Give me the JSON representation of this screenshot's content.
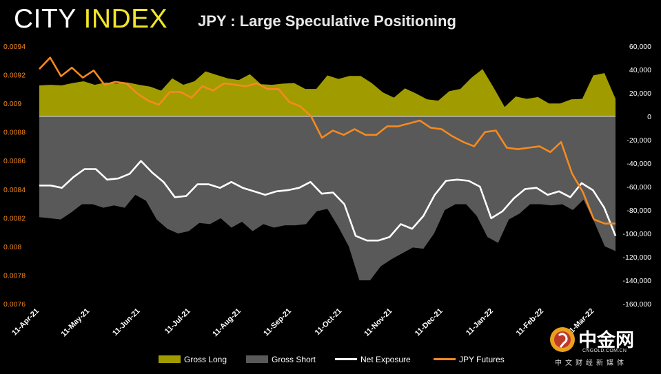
{
  "brand": {
    "word1": "CITY",
    "word2": "INDEX"
  },
  "header": {
    "title": "JPY : Large Speculative Positioning"
  },
  "watermark": {
    "name": "中金网",
    "url": "CNGOLD.COM.CN",
    "tagline": "中文财经新媒体"
  },
  "colors": {
    "gross_long": "#a09c00",
    "gross_short": "#595959",
    "net_exposure": "#ffffff",
    "jpy_futures": "#f58a1f"
  },
  "chart_data": {
    "type": "area",
    "title": "JPY : Large Speculative Positioning",
    "x_tick_labels": [
      "11-Apr-21",
      "11-May-21",
      "11-Jun-21",
      "11-Jul-21",
      "11-Aug-21",
      "11-Sep-21",
      "11-Oct-21",
      "11-Nov-21",
      "11-Dec-21",
      "11-Jan-22",
      "11-Feb-22",
      "11-Mar-22"
    ],
    "y_left": {
      "range": [
        0.0076,
        0.0094
      ],
      "ticks": [
        "0.0094",
        "0.0092",
        "0.009",
        "0.0088",
        "0.0086",
        "0.0084",
        "0.0082",
        "0.008",
        "0.0078",
        "0.0076"
      ]
    },
    "y_right": {
      "range": [
        -160000,
        60000
      ],
      "ticks": [
        "60,000",
        "40,000",
        "20,000",
        "0",
        "-20,000",
        "-40,000",
        "-60,000",
        "-80,000",
        "-100,000",
        "-120,000",
        "-140,000",
        "-160,000"
      ]
    },
    "legend": {
      "placement": "bottom",
      "entries": [
        "Gross Long",
        "Gross Short",
        "Net Exposure",
        "JPY Futures"
      ]
    },
    "series": [
      {
        "name": "Gross Long",
        "axis": "right",
        "kind": "area",
        "values": [
          26500,
          27000,
          26500,
          28500,
          30000,
          27000,
          29000,
          28000,
          29000,
          27000,
          25500,
          22000,
          32500,
          27000,
          30000,
          38500,
          35500,
          32500,
          31000,
          36000,
          27500,
          27000,
          28000,
          28500,
          23500,
          23500,
          35000,
          32000,
          34500,
          34500,
          28500,
          20500,
          16000,
          24000,
          19500,
          14500,
          13500,
          21500,
          23500,
          33000,
          40500,
          24500,
          8000,
          17000,
          15000,
          16500,
          11000,
          11000,
          14500,
          15000,
          35000,
          37000,
          15000
        ]
      },
      {
        "name": "Gross Short",
        "axis": "right",
        "kind": "area",
        "values": [
          -86000,
          -87000,
          -88000,
          -82000,
          -75000,
          -75000,
          -78000,
          -76000,
          -78000,
          -67000,
          -72000,
          -88000,
          -96000,
          -100000,
          -98000,
          -91000,
          -92000,
          -87000,
          -95000,
          -90000,
          -98000,
          -92000,
          -95000,
          -93000,
          -93000,
          -92000,
          -81000,
          -79000,
          -94000,
          -111000,
          -140000,
          -140000,
          -128000,
          -122000,
          -117000,
          -112000,
          -113000,
          -100000,
          -80000,
          -75000,
          -75000,
          -85000,
          -103000,
          -108000,
          -88000,
          -83000,
          -75000,
          -75000,
          -76000,
          -75000,
          -80000,
          -71000,
          -90000,
          -111000,
          -115000
        ]
      },
      {
        "name": "Net Exposure",
        "axis": "right",
        "kind": "line",
        "values": [
          -59000,
          -59000,
          -61000,
          -52000,
          -45000,
          -45000,
          -54000,
          -53000,
          -49000,
          -38000,
          -48000,
          -56000,
          -69000,
          -68000,
          -58000,
          -58000,
          -61000,
          -56000,
          -61000,
          -64000,
          -67000,
          -64000,
          -63000,
          -61000,
          -56000,
          -66000,
          -65000,
          -75000,
          -102000,
          -106000,
          -106000,
          -103000,
          -92000,
          -96000,
          -85000,
          -67000,
          -55000,
          -54000,
          -55000,
          -60000,
          -87000,
          -81000,
          -70000,
          -62000,
          -61000,
          -67000,
          -64000,
          -69000,
          -57000,
          -63000,
          -78000,
          -102000
        ]
      },
      {
        "name": "JPY Futures",
        "axis": "left",
        "kind": "line",
        "values": [
          0.00924,
          0.00932,
          0.00919,
          0.00925,
          0.00918,
          0.00923,
          0.00913,
          0.00915,
          0.00914,
          0.00907,
          0.00902,
          0.00899,
          0.00908,
          0.00908,
          0.00904,
          0.00912,
          0.00909,
          0.00914,
          0.00913,
          0.00912,
          0.00914,
          0.0091,
          0.0091,
          0.00901,
          0.00898,
          0.00891,
          0.00876,
          0.00881,
          0.00878,
          0.00882,
          0.00878,
          0.00878,
          0.00884,
          0.00884,
          0.00886,
          0.00888,
          0.00883,
          0.00882,
          0.00877,
          0.00873,
          0.0087,
          0.0088,
          0.00881,
          0.00869,
          0.00868,
          0.00869,
          0.0087,
          0.00866,
          0.00873,
          0.00851,
          0.00838,
          0.00819,
          0.00816,
          0.00816
        ]
      }
    ]
  }
}
